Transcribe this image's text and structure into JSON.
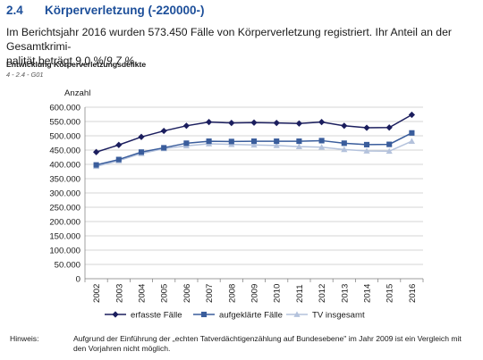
{
  "section": {
    "number": "2.4",
    "title": "Körperverletzung (-220000-)"
  },
  "intro": {
    "line1": "Im Berichtsjahr 2016 wurden 573.450 Fälle von Körperverletzung registriert. Ihr Anteil an der Gesamtkrimi-",
    "line2_start": "nalität beträgt 9,0 %/",
    "line2_italic": "9,7 %",
    "line2_end": "."
  },
  "figure": {
    "title": "Entwicklung Körperverletzungsdelikte",
    "code": "4 - 2.4 - G01"
  },
  "hint": {
    "label": "Hinweis:",
    "text": "Aufgrund der Einführung der „echten Tatverdächtigenzählung auf Bundesebene\" im Jahr 2009 ist ein Vergleich mit den Vorjahren nicht möglich."
  },
  "chart_data": {
    "type": "line",
    "ylabel": "Anzahl",
    "ylim": [
      0,
      600000
    ],
    "yticks": [
      0,
      50000,
      100000,
      150000,
      200000,
      250000,
      300000,
      350000,
      400000,
      450000,
      500000,
      550000,
      600000
    ],
    "ytick_labels": [
      "0",
      "50.000",
      "100.000",
      "150.000",
      "200.000",
      "250.000",
      "300.000",
      "350.000",
      "400.000",
      "450.000",
      "500.000",
      "550.000",
      "600.000"
    ],
    "grid": true,
    "legend_position": "bottom",
    "x": [
      "2002",
      "2003",
      "2004",
      "2005",
      "2006",
      "2007",
      "2008",
      "2009",
      "2010",
      "2011",
      "2012",
      "2013",
      "2014",
      "2015",
      "2016"
    ],
    "series": [
      {
        "name": "erfasste Fälle",
        "color": "#1b1e5e",
        "marker": "diamond",
        "values": [
          443000,
          468000,
          496000,
          517000,
          535000,
          548000,
          545000,
          546000,
          545000,
          543000,
          548000,
          535000,
          528000,
          529000,
          573450
        ]
      },
      {
        "name": "aufgeklärte Fälle",
        "color": "#3a5d9c",
        "marker": "square",
        "values": [
          398000,
          417000,
          443000,
          458000,
          474000,
          481000,
          480000,
          481000,
          481000,
          481000,
          483000,
          474000,
          469000,
          470000,
          510000
        ]
      },
      {
        "name": "TV insgesamt",
        "color": "#b4c2dc",
        "marker": "triangle",
        "values": [
          393000,
          413000,
          438000,
          455000,
          465000,
          472000,
          470000,
          468000,
          466000,
          462000,
          460000,
          452000,
          447000,
          446000,
          481000
        ]
      }
    ]
  }
}
